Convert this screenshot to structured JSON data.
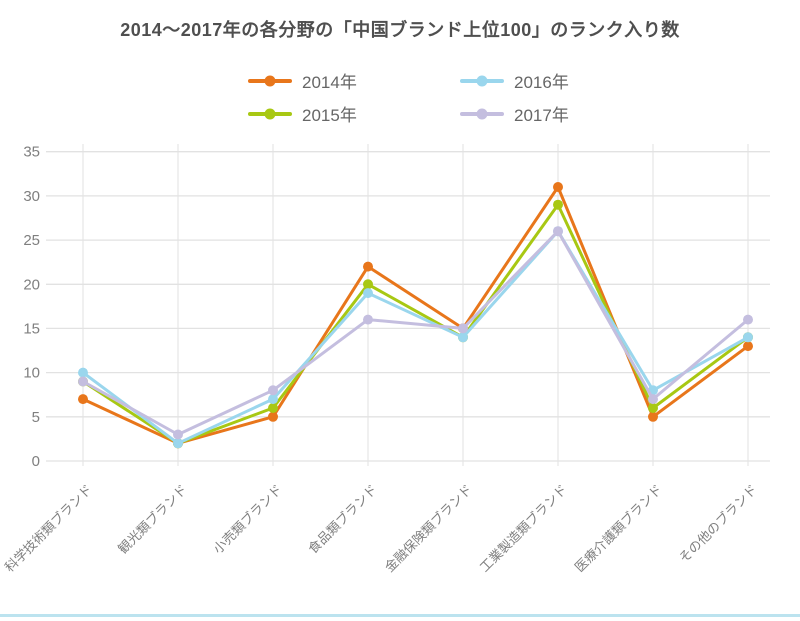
{
  "title": "2014〜2017年の各分野の「中国ブランド上位100」のランク入り数",
  "colors": {
    "title_text": "#4F4F4F",
    "legend_text": "#666666",
    "axis_text": "#7F7F7F",
    "gridline": "#E2E2E2",
    "bottom_rule": "#BCE3EF",
    "background": "#FFFFFF"
  },
  "chart_data": {
    "type": "line",
    "title": "2014〜2017年の各分野の「中国ブランド上位100」のランク入り数",
    "categories": [
      "科学技術類ブランド",
      "観光類ブランド",
      "小売類ブランド",
      "食品類ブランド",
      "金融保険類ブランド",
      "工業製造類ブランド",
      "医療介護類ブランド",
      "その他のブランド"
    ],
    "series": [
      {
        "name": "2014年",
        "color": "#E8761B",
        "values": [
          7,
          2,
          5,
          22,
          15,
          31,
          5,
          13
        ]
      },
      {
        "name": "2015年",
        "color": "#A8C813",
        "values": [
          9,
          2,
          6,
          20,
          14,
          29,
          6,
          14
        ]
      },
      {
        "name": "2016年",
        "color": "#9AD6ED",
        "values": [
          10,
          2,
          7,
          19,
          14,
          26,
          8,
          14
        ]
      },
      {
        "name": "2017年",
        "color": "#C4BEDF",
        "values": [
          9,
          3,
          8,
          16,
          15,
          26,
          7,
          16
        ]
      }
    ],
    "xlabel": "",
    "ylabel": "",
    "ylim": [
      0,
      35
    ],
    "ytick_step": 5,
    "yticks": [
      0,
      5,
      10,
      15,
      20,
      25,
      30,
      35
    ],
    "grid": true,
    "legend_position": "top"
  }
}
